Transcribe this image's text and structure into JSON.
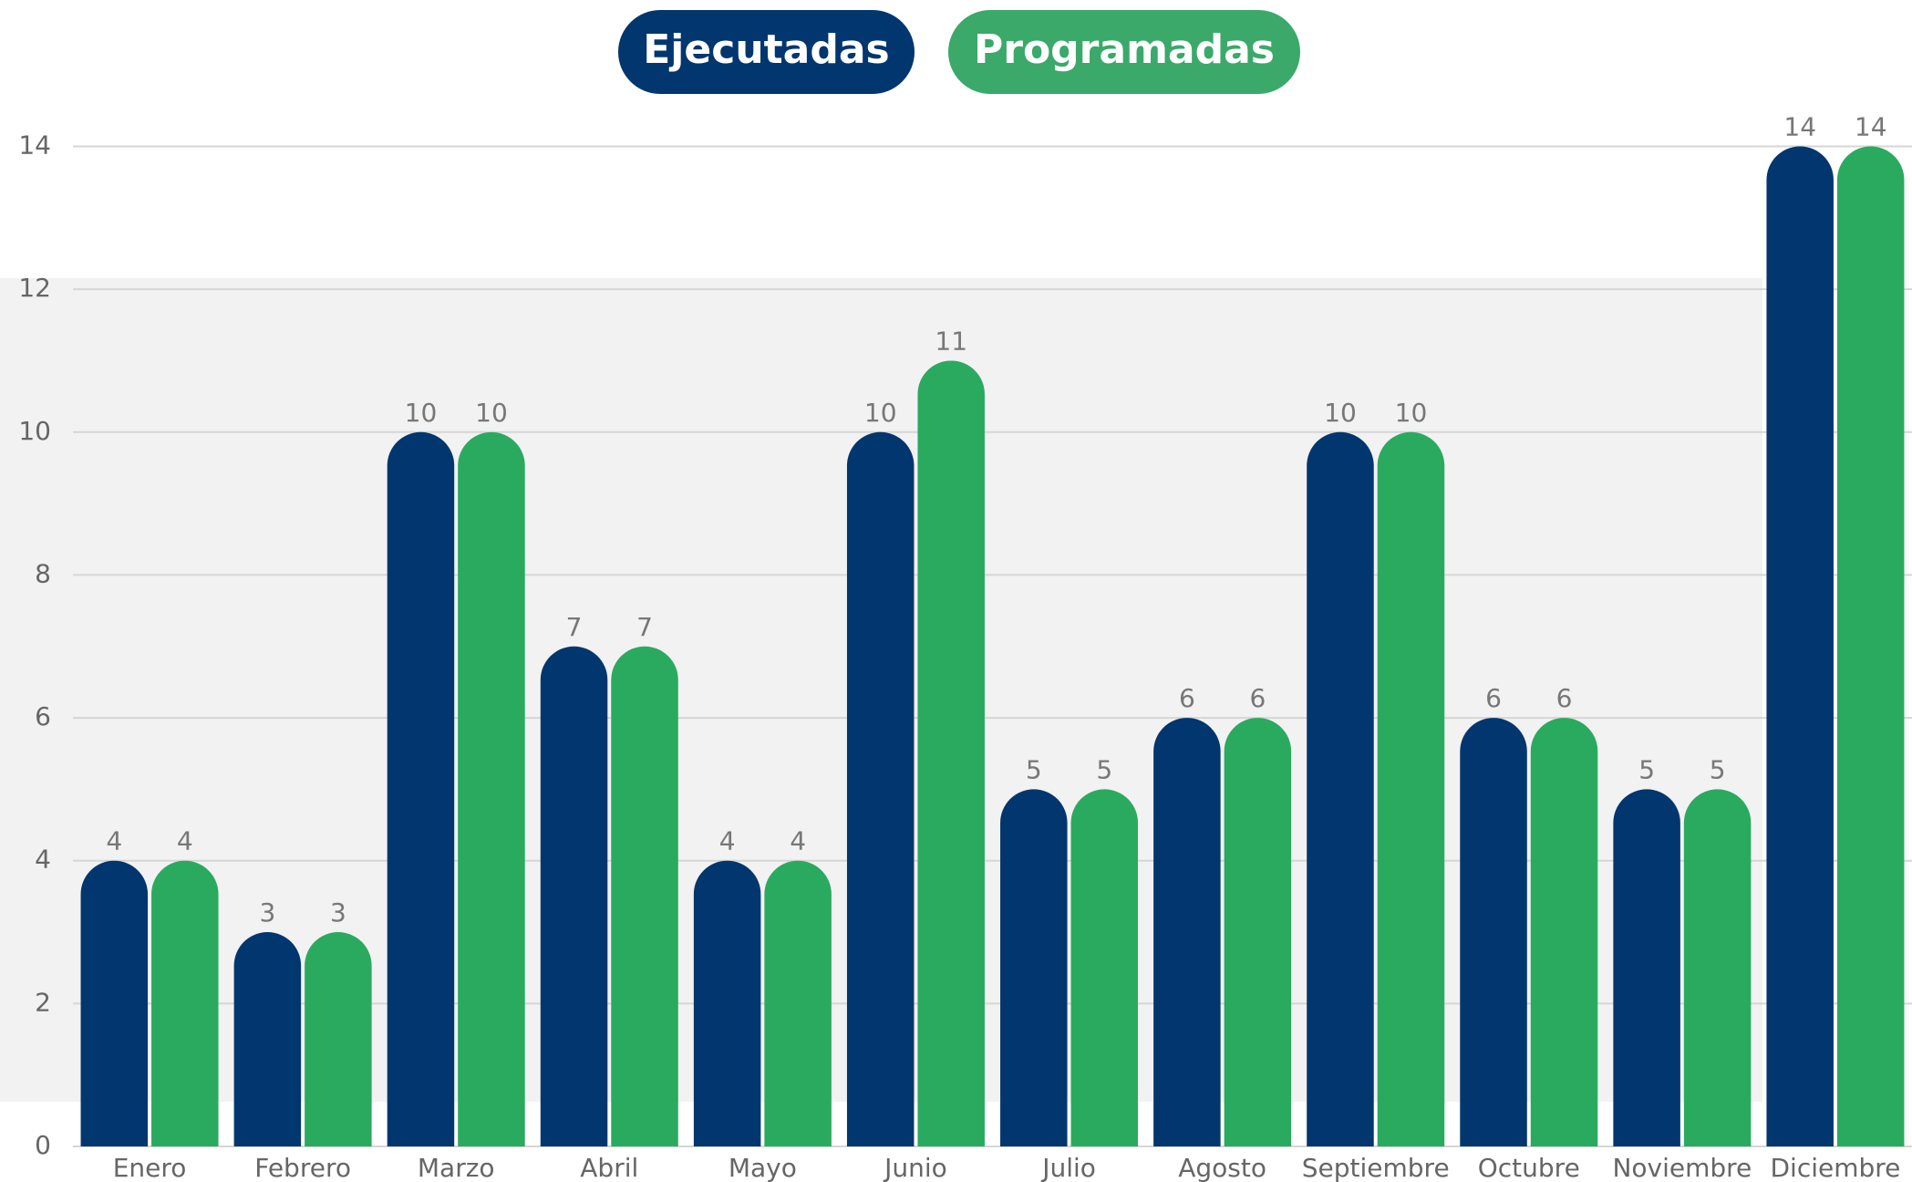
{
  "chart_data": {
    "type": "bar",
    "categories": [
      "Enero",
      "Febrero",
      "Marzo",
      "Abril",
      "Mayo",
      "Junio",
      "Julio",
      "Agosto",
      "Septiembre",
      "Octubre",
      "Noviembre",
      "Diciembre"
    ],
    "series": [
      {
        "name": "Ejecutadas",
        "color": "#02366e",
        "values": [
          4,
          3,
          10,
          7,
          4,
          10,
          5,
          6,
          10,
          6,
          5,
          14
        ]
      },
      {
        "name": "Programadas",
        "color": "#2aaa5e",
        "values": [
          4,
          3,
          10,
          7,
          4,
          11,
          5,
          6,
          10,
          6,
          5,
          14
        ]
      }
    ],
    "ylim": [
      0,
      14
    ],
    "yticks": [
      0,
      2,
      4,
      6,
      8,
      10,
      12,
      14
    ],
    "grid": true
  }
}
